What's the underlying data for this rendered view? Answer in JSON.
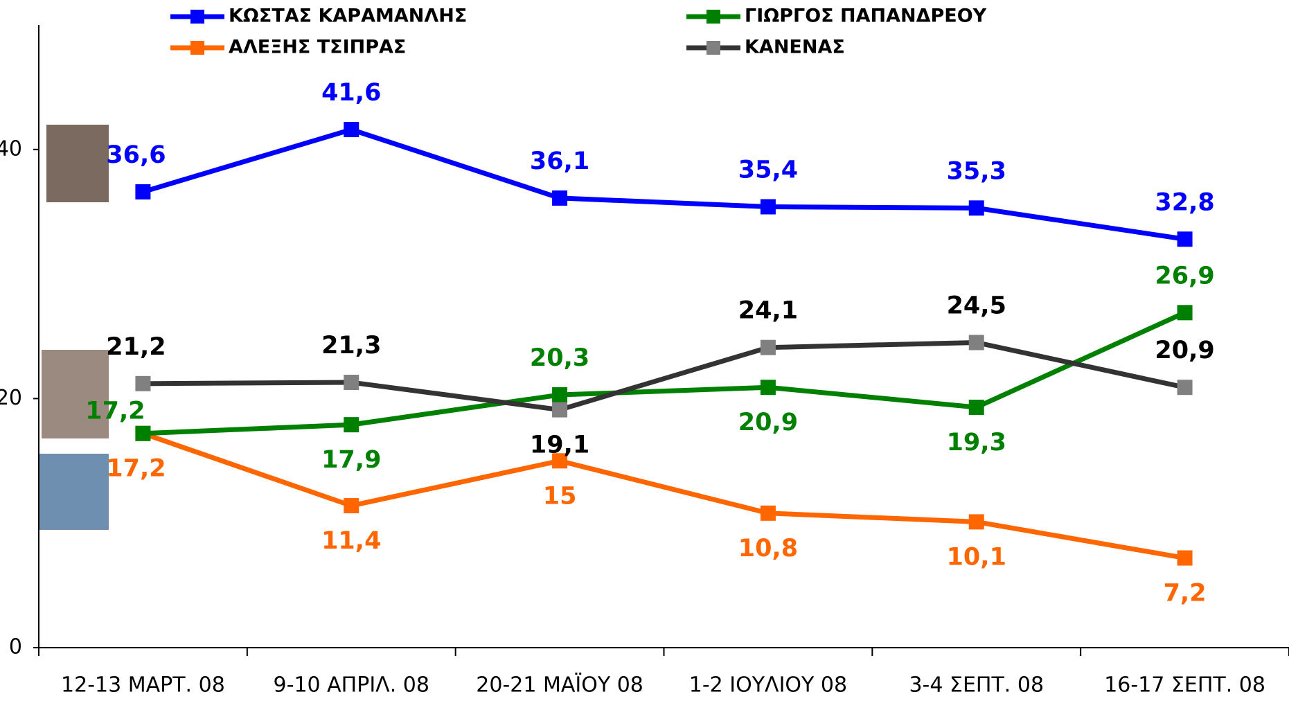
{
  "chart_data": {
    "type": "line",
    "categories": [
      "12-13 ΜΑΡΤ. 08",
      "9-10 ΑΠΡΙΛ. 08",
      "20-21 ΜΑΪΟΥ 08",
      "1-2 ΙΟΥΛΙΟΥ 08",
      "3-4 ΣΕΠΤ. 08",
      "16-17 ΣΕΠΤ. 08"
    ],
    "series": [
      {
        "name": "ΚΩΣΤΑΣ ΚΑΡΑΜΑΝΛΗΣ",
        "color": "#0000ff",
        "marker_color": "#0000ff",
        "values": [
          36.6,
          41.6,
          36.1,
          35.4,
          35.3,
          32.8
        ],
        "value_labels": [
          "36,6",
          "41,6",
          "36,1",
          "35,4",
          "35,3",
          "32,8"
        ]
      },
      {
        "name": "ΑΛΕΞΗΣ ΤΣΙΠΡΑΣ",
        "color": "#ff6600",
        "marker_color": "#ff6600",
        "values": [
          17.2,
          11.4,
          15,
          10.8,
          10.1,
          7.2
        ],
        "value_labels": [
          "17,2",
          "11,4",
          "15",
          "10,8",
          "10,1",
          "7,2"
        ]
      },
      {
        "name": "ΓΙΩΡΓΟΣ ΠΑΠΑΝΔΡΕΟΥ",
        "color": "#008000",
        "marker_color": "#008000",
        "values": [
          17.2,
          17.9,
          20.3,
          20.9,
          19.3,
          26.9
        ],
        "value_labels": [
          "17,2",
          "17,9",
          "20,3",
          "20,9",
          "19,3",
          "26,9"
        ]
      },
      {
        "name": "ΚΑΝΕΝΑΣ",
        "color": "#333333",
        "marker_color": "#808080",
        "label_color": "#000000",
        "values": [
          21.2,
          21.3,
          19.1,
          24.1,
          24.5,
          20.9
        ],
        "value_labels": [
          "21,2",
          "21,3",
          "19,1",
          "24,1",
          "24,5",
          "20,9"
        ]
      }
    ],
    "ylim": [
      0,
      50
    ],
    "yticks": [
      0,
      20,
      40
    ]
  }
}
